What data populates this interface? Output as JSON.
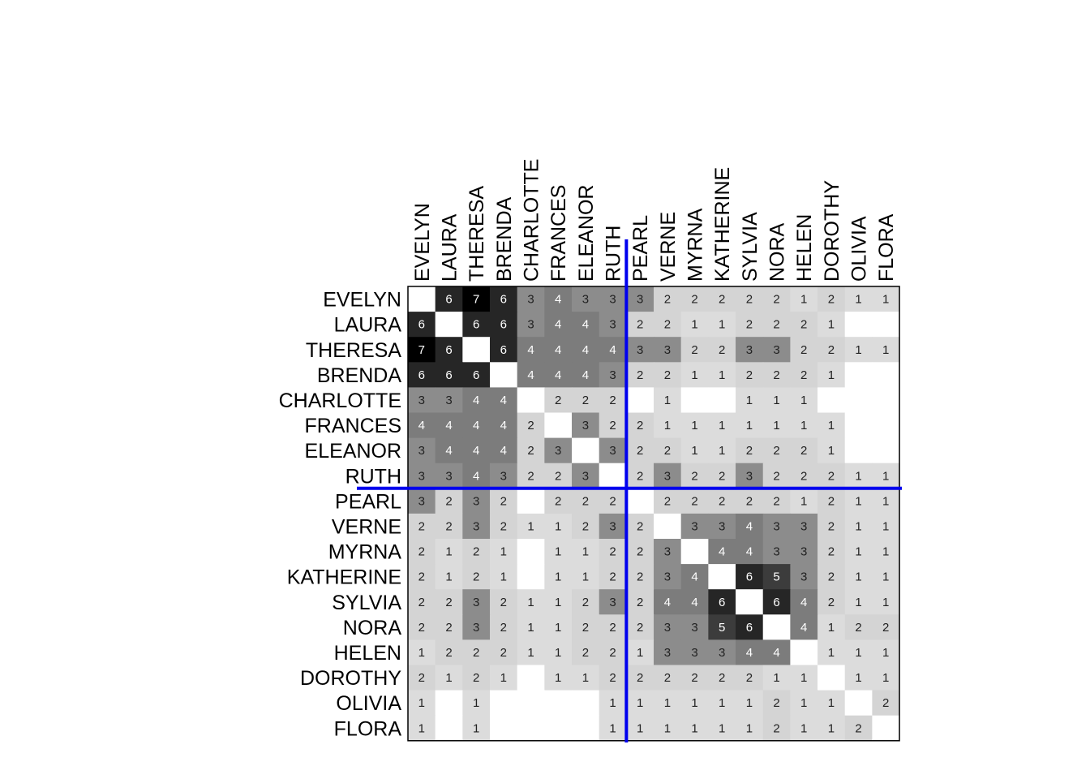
{
  "chart_data": {
    "type": "heatmap",
    "title": "",
    "rows": [
      "EVELYN",
      "LAURA",
      "THERESA",
      "BRENDA",
      "CHARLOTTE",
      "FRANCES",
      "ELEANOR",
      "RUTH",
      "PEARL",
      "VERNE",
      "MYRNA",
      "KATHERINE",
      "SYLVIA",
      "NORA",
      "HELEN",
      "DOROTHY",
      "OLIVIA",
      "FLORA"
    ],
    "cols": [
      "EVELYN",
      "LAURA",
      "THERESA",
      "BRENDA",
      "CHARLOTTE",
      "FRANCES",
      "ELEANOR",
      "RUTH",
      "PEARL",
      "VERNE",
      "MYRNA",
      "KATHERINE",
      "SYLVIA",
      "NORA",
      "HELEN",
      "DOROTHY",
      "OLIVIA",
      "FLORA"
    ],
    "values": [
      [
        null,
        6,
        7,
        6,
        3,
        4,
        3,
        3,
        3,
        2,
        2,
        2,
        2,
        2,
        1,
        2,
        1,
        1
      ],
      [
        6,
        null,
        6,
        6,
        3,
        4,
        4,
        3,
        2,
        2,
        1,
        1,
        2,
        2,
        2,
        1,
        0,
        0
      ],
      [
        7,
        6,
        null,
        6,
        4,
        4,
        4,
        4,
        3,
        3,
        2,
        2,
        3,
        3,
        2,
        2,
        1,
        1
      ],
      [
        6,
        6,
        6,
        null,
        4,
        4,
        4,
        3,
        2,
        2,
        1,
        1,
        2,
        2,
        2,
        1,
        0,
        0
      ],
      [
        3,
        3,
        4,
        4,
        null,
        2,
        2,
        2,
        0,
        1,
        0,
        0,
        1,
        1,
        1,
        0,
        0,
        0
      ],
      [
        4,
        4,
        4,
        4,
        2,
        null,
        3,
        2,
        2,
        1,
        1,
        1,
        1,
        1,
        1,
        1,
        0,
        0
      ],
      [
        3,
        4,
        4,
        4,
        2,
        3,
        null,
        3,
        2,
        2,
        1,
        1,
        2,
        2,
        2,
        1,
        0,
        0
      ],
      [
        3,
        3,
        4,
        3,
        2,
        2,
        3,
        null,
        2,
        3,
        2,
        2,
        3,
        2,
        2,
        2,
        1,
        1
      ],
      [
        3,
        2,
        3,
        2,
        0,
        2,
        2,
        2,
        null,
        2,
        2,
        2,
        2,
        2,
        1,
        2,
        1,
        1
      ],
      [
        2,
        2,
        3,
        2,
        1,
        1,
        2,
        3,
        2,
        null,
        3,
        3,
        4,
        3,
        3,
        2,
        1,
        1
      ],
      [
        2,
        1,
        2,
        1,
        0,
        1,
        1,
        2,
        2,
        3,
        null,
        4,
        4,
        3,
        3,
        2,
        1,
        1
      ],
      [
        2,
        1,
        2,
        1,
        0,
        1,
        1,
        2,
        2,
        3,
        4,
        null,
        6,
        5,
        3,
        2,
        1,
        1
      ],
      [
        2,
        2,
        3,
        2,
        1,
        1,
        2,
        3,
        2,
        4,
        4,
        6,
        null,
        6,
        4,
        2,
        1,
        1
      ],
      [
        2,
        2,
        3,
        2,
        1,
        1,
        2,
        2,
        2,
        3,
        3,
        5,
        6,
        null,
        4,
        1,
        2,
        2
      ],
      [
        1,
        2,
        2,
        2,
        1,
        1,
        2,
        2,
        1,
        3,
        3,
        3,
        4,
        4,
        null,
        1,
        1,
        1
      ],
      [
        2,
        1,
        2,
        1,
        0,
        1,
        1,
        2,
        2,
        2,
        2,
        2,
        2,
        1,
        1,
        null,
        1,
        1
      ],
      [
        1,
        0,
        1,
        0,
        0,
        0,
        0,
        1,
        1,
        1,
        1,
        1,
        1,
        2,
        1,
        1,
        null,
        2
      ],
      [
        1,
        0,
        1,
        0,
        0,
        0,
        0,
        1,
        1,
        1,
        1,
        1,
        1,
        2,
        1,
        1,
        2,
        null
      ]
    ],
    "partition_after_index": 7,
    "color_scale": "grayscale-dark-high",
    "partition_line_color": "#0000ee",
    "grid": false,
    "legend": "none"
  }
}
